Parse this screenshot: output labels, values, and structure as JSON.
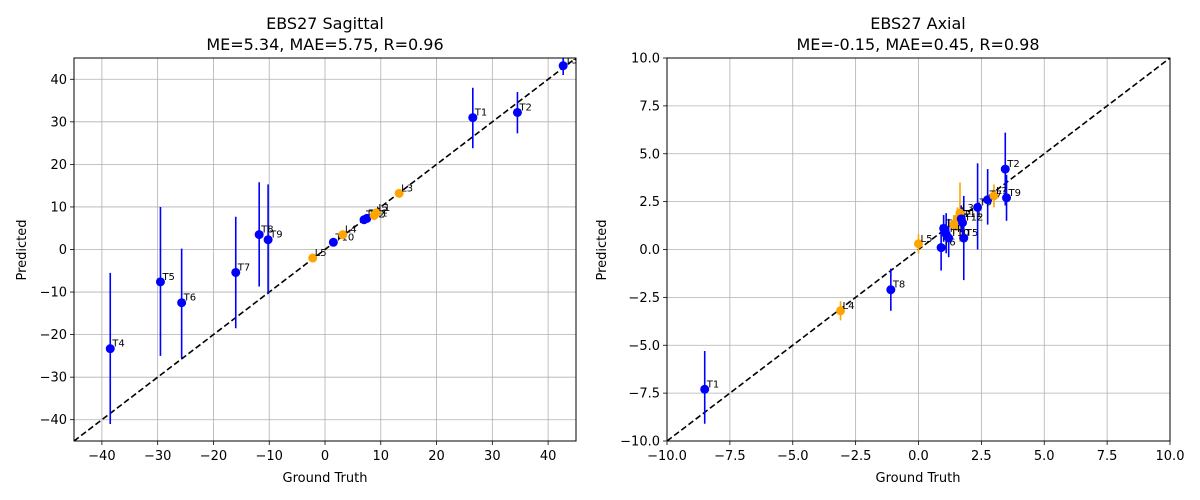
{
  "chart_data": [
    {
      "type": "scatter",
      "title": "EBS27 Sagittal",
      "subtitle": "ME=5.34, MAE=5.75, R=0.96",
      "xlabel": "Ground Truth",
      "ylabel": "Predicted",
      "xlim": [
        -45,
        45
      ],
      "ylim": [
        -45,
        45
      ],
      "xticks": [
        "−40",
        "−30",
        "−20",
        "−10",
        "0",
        "10",
        "20",
        "30",
        "40"
      ],
      "yticks": [
        "−40",
        "−30",
        "−20",
        "−10",
        "0",
        "10",
        "20",
        "30",
        "40"
      ],
      "xtick_values": [
        -40,
        -30,
        -20,
        -10,
        0,
        10,
        20,
        30,
        40
      ],
      "ytick_values": [
        -40,
        -30,
        -20,
        -10,
        0,
        10,
        20,
        30,
        40
      ],
      "grid": true,
      "identity_line": true,
      "colors": {
        "thoracic": "#0000ff",
        "lumbar": "#ffa500"
      },
      "points": [
        {
          "label": "T4",
          "x": -38.5,
          "y": -23.3,
          "yerr_low": -41.0,
          "yerr_high": -5.5,
          "color": "#0000ff"
        },
        {
          "label": "T5",
          "x": -29.5,
          "y": -7.6,
          "yerr_low": -25.0,
          "yerr_high": 10.0,
          "color": "#0000ff"
        },
        {
          "label": "T6",
          "x": -25.7,
          "y": -12.5,
          "yerr_low": -25.5,
          "yerr_high": 0.2,
          "color": "#0000ff"
        },
        {
          "label": "T7",
          "x": -16.0,
          "y": -5.4,
          "yerr_low": -18.5,
          "yerr_high": 7.7,
          "color": "#0000ff"
        },
        {
          "label": "T8",
          "x": -11.8,
          "y": 3.5,
          "yerr_low": -8.7,
          "yerr_high": 15.8,
          "color": "#0000ff"
        },
        {
          "label": "T9",
          "x": -10.2,
          "y": 2.3,
          "yerr_low": -10.5,
          "yerr_high": 15.3,
          "color": "#0000ff"
        },
        {
          "label": "L5",
          "x": -2.2,
          "y": -2.0,
          "yerr_low": -2.8,
          "yerr_high": -1.2,
          "color": "#ffa500"
        },
        {
          "label": "T10",
          "x": 1.5,
          "y": 1.7,
          "yerr_low": 0.8,
          "yerr_high": 2.6,
          "color": "#0000ff"
        },
        {
          "label": "L4",
          "x": 3.2,
          "y": 3.5,
          "yerr_low": 2.6,
          "yerr_high": 4.4,
          "color": "#ffa500"
        },
        {
          "label": "T12",
          "x": 7.0,
          "y": 7.0,
          "yerr_low": 6.2,
          "yerr_high": 7.8,
          "color": "#0000ff"
        },
        {
          "label": "T11",
          "x": 7.5,
          "y": 7.3,
          "yerr_low": 6.6,
          "yerr_high": 8.0,
          "color": "#0000ff"
        },
        {
          "label": "L2",
          "x": 8.8,
          "y": 8.0,
          "yerr_low": 7.2,
          "yerr_high": 8.8,
          "color": "#ffa500"
        },
        {
          "label": "L1",
          "x": 9.2,
          "y": 8.6,
          "yerr_low": 7.8,
          "yerr_high": 9.4,
          "color": "#ffa500"
        },
        {
          "label": "L3",
          "x": 13.3,
          "y": 13.2,
          "yerr_low": 12.4,
          "yerr_high": 14.0,
          "color": "#ffa500"
        },
        {
          "label": "T1",
          "x": 26.5,
          "y": 31.0,
          "yerr_low": 23.8,
          "yerr_high": 38.0,
          "color": "#0000ff"
        },
        {
          "label": "T2",
          "x": 34.5,
          "y": 32.2,
          "yerr_low": 27.3,
          "yerr_high": 37.0,
          "color": "#0000ff"
        },
        {
          "label": "T3",
          "x": 42.7,
          "y": 43.2,
          "yerr_low": 41.0,
          "yerr_high": 45.0,
          "color": "#0000ff"
        }
      ]
    },
    {
      "type": "scatter",
      "title": "EBS27 Axial",
      "subtitle": "ME=-0.15, MAE=0.45, R=0.98",
      "xlabel": "Ground Truth",
      "ylabel": "Predicted",
      "xlim": [
        -10,
        10
      ],
      "ylim": [
        -10,
        10
      ],
      "xticks": [
        "−10.0",
        "−7.5",
        "−5.0",
        "−2.5",
        "0.0",
        "2.5",
        "5.0",
        "7.5",
        "10.0"
      ],
      "yticks": [
        "−10.0",
        "−7.5",
        "−5.0",
        "−2.5",
        "0.0",
        "2.5",
        "5.0",
        "7.5",
        "10.0"
      ],
      "xtick_values": [
        -10,
        -7.5,
        -5,
        -2.5,
        0,
        2.5,
        5,
        7.5,
        10
      ],
      "ytick_values": [
        -10,
        -7.5,
        -5,
        -2.5,
        0,
        2.5,
        5,
        7.5,
        10
      ],
      "grid": true,
      "identity_line": true,
      "colors": {
        "thoracic": "#0000ff",
        "lumbar": "#ffa500"
      },
      "points": [
        {
          "label": "T1",
          "x": -8.5,
          "y": -7.3,
          "yerr_low": -9.1,
          "yerr_high": -5.3,
          "color": "#0000ff"
        },
        {
          "label": "L4",
          "x": -3.1,
          "y": -3.2,
          "yerr_low": -3.7,
          "yerr_high": -2.7,
          "color": "#ffa500"
        },
        {
          "label": "T8",
          "x": -1.1,
          "y": -2.1,
          "yerr_low": -3.2,
          "yerr_high": -1.0,
          "color": "#0000ff"
        },
        {
          "label": "L5",
          "x": 0.0,
          "y": 0.3,
          "yerr_low": -0.2,
          "yerr_high": 0.8,
          "color": "#ffa500"
        },
        {
          "label": "T6",
          "x": 0.9,
          "y": 0.1,
          "yerr_low": -1.1,
          "yerr_high": 1.3,
          "color": "#0000ff"
        },
        {
          "label": "T3",
          "x": 1.0,
          "y": 1.1,
          "yerr_low": 0.4,
          "yerr_high": 1.8,
          "color": "#0000ff"
        },
        {
          "label": "T4",
          "x": 1.1,
          "y": 0.8,
          "yerr_low": -0.2,
          "yerr_high": 1.9,
          "color": "#0000ff"
        },
        {
          "label": "T10",
          "x": 1.2,
          "y": 0.6,
          "yerr_low": -0.4,
          "yerr_high": 1.6,
          "color": "#0000ff"
        },
        {
          "label": "L1",
          "x": 1.4,
          "y": 1.3,
          "yerr_low": 0.8,
          "yerr_high": 1.8,
          "color": "#ffa500"
        },
        {
          "label": "L2",
          "x": 1.55,
          "y": 1.6,
          "yerr_low": 1.0,
          "yerr_high": 2.2,
          "color": "#ffa500"
        },
        {
          "label": "L3",
          "x": 1.65,
          "y": 1.9,
          "yerr_low": 0.4,
          "yerr_high": 3.5,
          "color": "#ffa500"
        },
        {
          "label": "T11",
          "x": 1.7,
          "y": 1.6,
          "yerr_low": 0.9,
          "yerr_high": 2.3,
          "color": "#0000ff"
        },
        {
          "label": "T12",
          "x": 1.75,
          "y": 1.4,
          "yerr_low": 0.6,
          "yerr_high": 2.2,
          "color": "#0000ff"
        },
        {
          "label": "T5",
          "x": 1.8,
          "y": 0.6,
          "yerr_low": -1.6,
          "yerr_high": 2.8,
          "color": "#0000ff"
        },
        {
          "label": "T9",
          "x": 2.35,
          "y": 2.2,
          "yerr_low": 0.0,
          "yerr_high": 4.5,
          "color": "#0000ff"
        },
        {
          "label": "T7",
          "x": 2.75,
          "y": 2.6,
          "yerr_low": 1.3,
          "yerr_high": 4.2,
          "color": "#0000ff"
        },
        {
          "label": "L?",
          "x": 3.0,
          "y": 2.8,
          "yerr_low": 2.2,
          "yerr_high": 3.4,
          "color": "#ffa500"
        },
        {
          "label": "T2",
          "x": 3.45,
          "y": 4.2,
          "yerr_low": 2.3,
          "yerr_high": 6.1,
          "color": "#0000ff"
        },
        {
          "label": "T9",
          "x": 3.5,
          "y": 2.7,
          "yerr_low": 1.5,
          "yerr_high": 3.9,
          "color": "#0000ff"
        }
      ]
    }
  ]
}
